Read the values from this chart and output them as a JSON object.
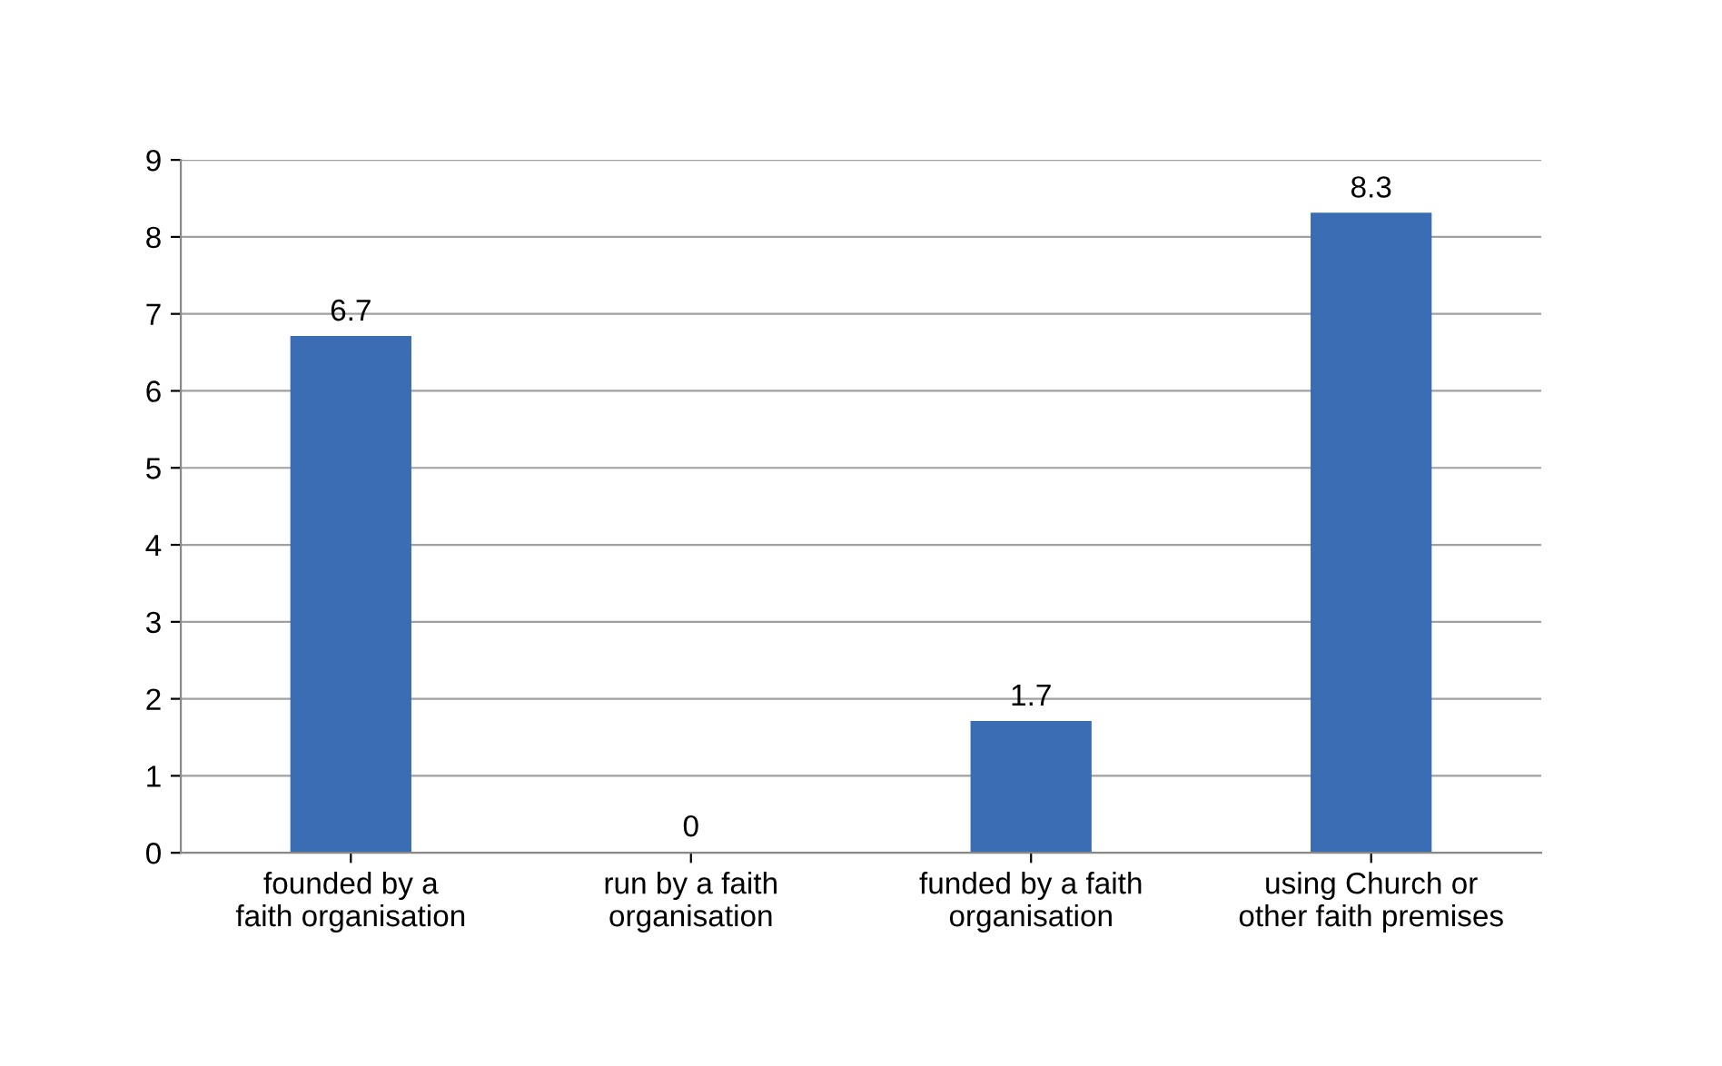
{
  "chart_data": {
    "type": "bar",
    "categories": [
      "founded by a\nfaith organisation",
      "run by a faith\norganisation",
      "funded by a faith\norganisation",
      "using Church or\nother faith premises"
    ],
    "values": [
      6.7,
      0,
      1.7,
      8.3
    ],
    "color": "#3a6db3",
    "ylim": [
      0,
      9
    ],
    "yticks": [
      0,
      1,
      2,
      3,
      4,
      5,
      6,
      7,
      8,
      9
    ],
    "grid": "y",
    "data_labels": true
  }
}
